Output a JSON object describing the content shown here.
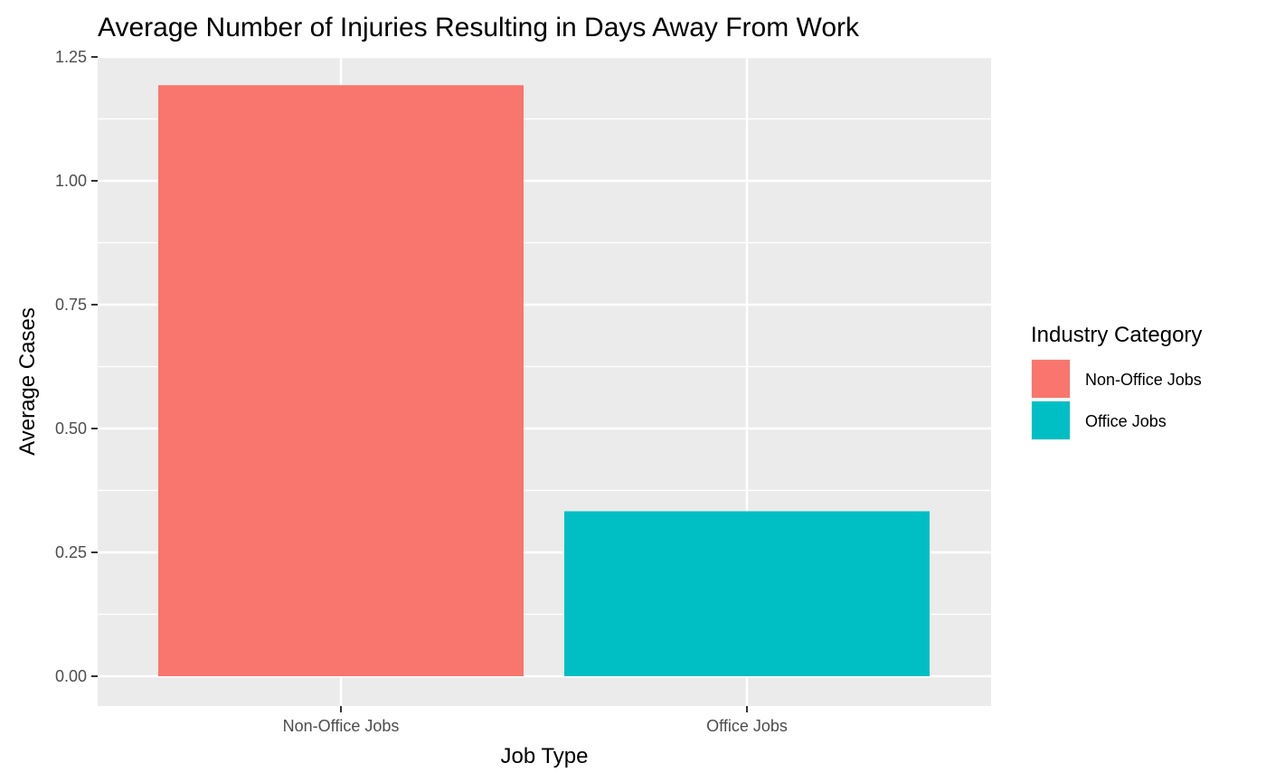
{
  "chart_data": {
    "type": "bar",
    "title": "Average Number of Injuries Resulting in Days Away From Work",
    "xlabel": "Job Type",
    "ylabel": "Average Cases",
    "categories": [
      "Non-Office Jobs",
      "Office Jobs"
    ],
    "values": [
      1.193,
      0.333
    ],
    "ylim": [
      0,
      1.25
    ],
    "yticks": [
      0,
      0.25,
      0.5,
      0.75,
      1.0,
      1.25
    ],
    "ytick_labels": [
      "0.00",
      "0.25",
      "0.50",
      "0.75",
      "1.00",
      "1.25"
    ],
    "grid": true,
    "colors": [
      "#F8766D",
      "#00BFC4"
    ],
    "panel_background": "#EBEBEB",
    "legend": {
      "title": "Industry Category",
      "position": "right",
      "entries": [
        "Non-Office Jobs",
        "Office Jobs"
      ]
    }
  }
}
